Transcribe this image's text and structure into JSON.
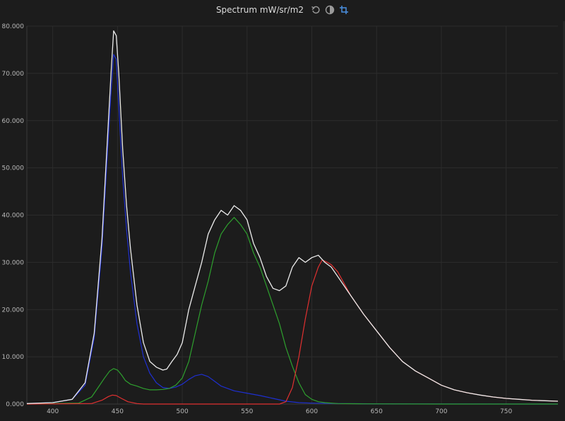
{
  "header": {
    "title": "Spectrum mW/sr/m2",
    "icons": [
      "reset-icon",
      "contrast-icon",
      "crop-icon"
    ]
  },
  "colors": {
    "background": "#1c1c1c",
    "grid": "#2c2c2c",
    "total": "#ececec",
    "blue": "#1e2fd0",
    "green": "#2ea02e",
    "red": "#e03030",
    "accent": "#4a90e2"
  },
  "chart_data": {
    "type": "line",
    "title": "Spectrum mW/sr/m2",
    "xlabel": "",
    "ylabel": "",
    "xlim": [
      380,
      790
    ],
    "ylim": [
      0,
      80
    ],
    "grid": true,
    "x_ticks": [
      "400",
      "450",
      "500",
      "550",
      "600",
      "650",
      "700",
      "750"
    ],
    "y_ticks": [
      "0.000",
      "10.000",
      "20.000",
      "30.000",
      "40.000",
      "50.000",
      "60.000",
      "70.000",
      "80.000"
    ],
    "series": [
      {
        "color": "#ececec",
        "x": [
          380,
          400,
          415,
          425,
          432,
          438,
          442,
          445,
          447,
          449,
          451,
          454,
          457,
          460,
          465,
          470,
          475,
          480,
          485,
          488,
          492,
          496,
          500,
          505,
          510,
          515,
          520,
          525,
          530,
          535,
          540,
          545,
          550,
          555,
          560,
          565,
          570,
          575,
          580,
          585,
          590,
          595,
          600,
          605,
          610,
          615,
          620,
          630,
          640,
          650,
          660,
          670,
          680,
          690,
          700,
          710,
          720,
          730,
          740,
          750,
          760,
          770,
          780,
          790
        ],
        "y": [
          0.1,
          0.3,
          1.0,
          4.5,
          15,
          35,
          55,
          70,
          79,
          78,
          70,
          54,
          42,
          33,
          21,
          13,
          9,
          7.8,
          7.2,
          7.4,
          9.0,
          10.5,
          13,
          20,
          25,
          30,
          36,
          39,
          41,
          40,
          42,
          41,
          39,
          34,
          31,
          27,
          24.5,
          24,
          25,
          29,
          31,
          30,
          31,
          31.5,
          30,
          29,
          27,
          23,
          19,
          15.5,
          12,
          9,
          7,
          5.5,
          4,
          3,
          2.4,
          1.9,
          1.5,
          1.2,
          1.0,
          0.8,
          0.7,
          0.6
        ]
      },
      {
        "color": "#1e2fd0",
        "x": [
          380,
          400,
          415,
          425,
          432,
          438,
          442,
          445,
          447,
          449,
          451,
          454,
          457,
          460,
          465,
          470,
          475,
          480,
          485,
          490,
          495,
          500,
          505,
          510,
          515,
          520,
          525,
          530,
          540,
          550,
          560,
          570,
          580,
          590,
          600,
          620,
          650,
          700,
          790
        ],
        "y": [
          0.1,
          0.3,
          1.0,
          4.0,
          14,
          33,
          52,
          66,
          74,
          73,
          63,
          48,
          37,
          28,
          17,
          10,
          6.5,
          4.5,
          3.5,
          3.3,
          3.6,
          4.2,
          5.2,
          6.0,
          6.3,
          5.8,
          4.8,
          3.8,
          2.8,
          2.3,
          1.8,
          1.2,
          0.6,
          0.3,
          0.2,
          0.1,
          0.05,
          0.02,
          0.0
        ]
      },
      {
        "color": "#2ea02e",
        "x": [
          380,
          420,
          430,
          435,
          440,
          444,
          447,
          450,
          453,
          456,
          460,
          465,
          470,
          475,
          480,
          485,
          490,
          495,
          500,
          505,
          510,
          515,
          520,
          525,
          530,
          535,
          540,
          545,
          550,
          555,
          560,
          565,
          570,
          575,
          580,
          585,
          590,
          595,
          600,
          605,
          610,
          620,
          640,
          700,
          790
        ],
        "y": [
          0,
          0.2,
          1.5,
          3.5,
          5.5,
          7.0,
          7.5,
          7.2,
          6.2,
          5.0,
          4.2,
          3.8,
          3.3,
          3.0,
          3.0,
          3.1,
          3.3,
          4.0,
          5.5,
          9.0,
          15,
          21,
          26,
          32,
          36,
          38,
          39.5,
          38,
          36,
          32,
          29,
          25,
          21,
          17,
          12,
          8,
          4.5,
          2.0,
          1.0,
          0.5,
          0.3,
          0.1,
          0.05,
          0.0,
          0.0
        ]
      },
      {
        "color": "#e03030",
        "x": [
          380,
          430,
          438,
          443,
          446,
          449,
          453,
          458,
          465,
          470,
          575,
          580,
          585,
          590,
          595,
          600,
          605,
          608,
          612,
          615,
          620,
          630,
          640,
          650,
          660,
          670,
          680,
          690,
          700,
          710,
          720,
          730,
          740,
          750,
          760,
          770,
          780,
          790
        ],
        "y": [
          0,
          0.1,
          0.8,
          1.6,
          1.9,
          1.8,
          1.2,
          0.5,
          0.1,
          0.0,
          0.0,
          0.5,
          3.5,
          10,
          18,
          25,
          29,
          30.5,
          30,
          29.5,
          28,
          23,
          19,
          15.5,
          12,
          9,
          7,
          5.5,
          4,
          3,
          2.4,
          1.9,
          1.5,
          1.2,
          1.0,
          0.8,
          0.7,
          0.6
        ]
      }
    ]
  }
}
